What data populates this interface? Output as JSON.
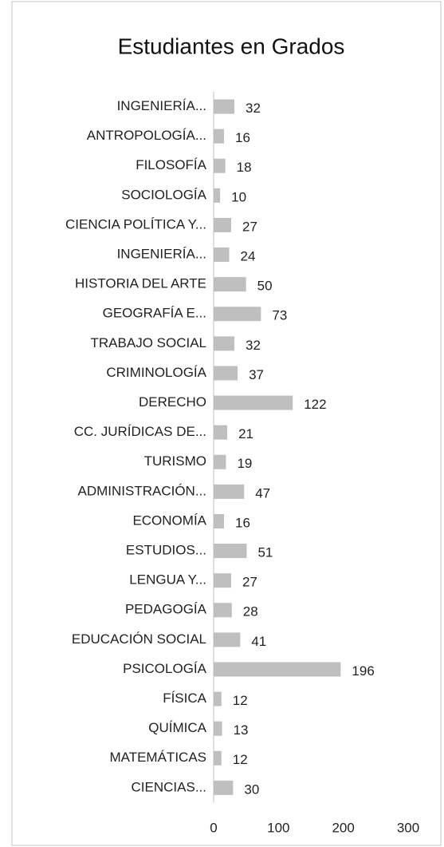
{
  "chart_data": {
    "type": "bar",
    "orientation": "horizontal",
    "title": "Estudiantes en Grados",
    "categories": [
      "INGENIERÍA...",
      "ANTROPOLOGÍA...",
      "FILOSOFÍA",
      "SOCIOLOGÍA",
      "CIENCIA POLÍTICA Y...",
      "INGENIERÍA...",
      "HISTORIA DEL ARTE",
      "GEOGRAFÍA E...",
      "TRABAJO SOCIAL",
      "CRIMINOLOGÍA",
      "DERECHO",
      "CC. JURÍDICAS DE...",
      "TURISMO",
      "ADMINISTRACIÓN...",
      "ECONOMÍA",
      "ESTUDIOS...",
      "LENGUA Y...",
      "PEDAGOGÍA",
      "EDUCACIÓN SOCIAL",
      "PSICOLOGÍA",
      "FÍSICA",
      "QUÍMICA",
      "MATEMÁTICAS",
      "CIENCIAS..."
    ],
    "values": [
      32,
      16,
      18,
      10,
      27,
      24,
      50,
      73,
      32,
      37,
      122,
      21,
      19,
      47,
      16,
      51,
      27,
      28,
      41,
      196,
      12,
      13,
      12,
      30
    ],
    "color": "#bfbfbf",
    "xlim": [
      0,
      300
    ],
    "xticks": [
      0,
      100,
      200,
      300
    ],
    "grid": false
  }
}
